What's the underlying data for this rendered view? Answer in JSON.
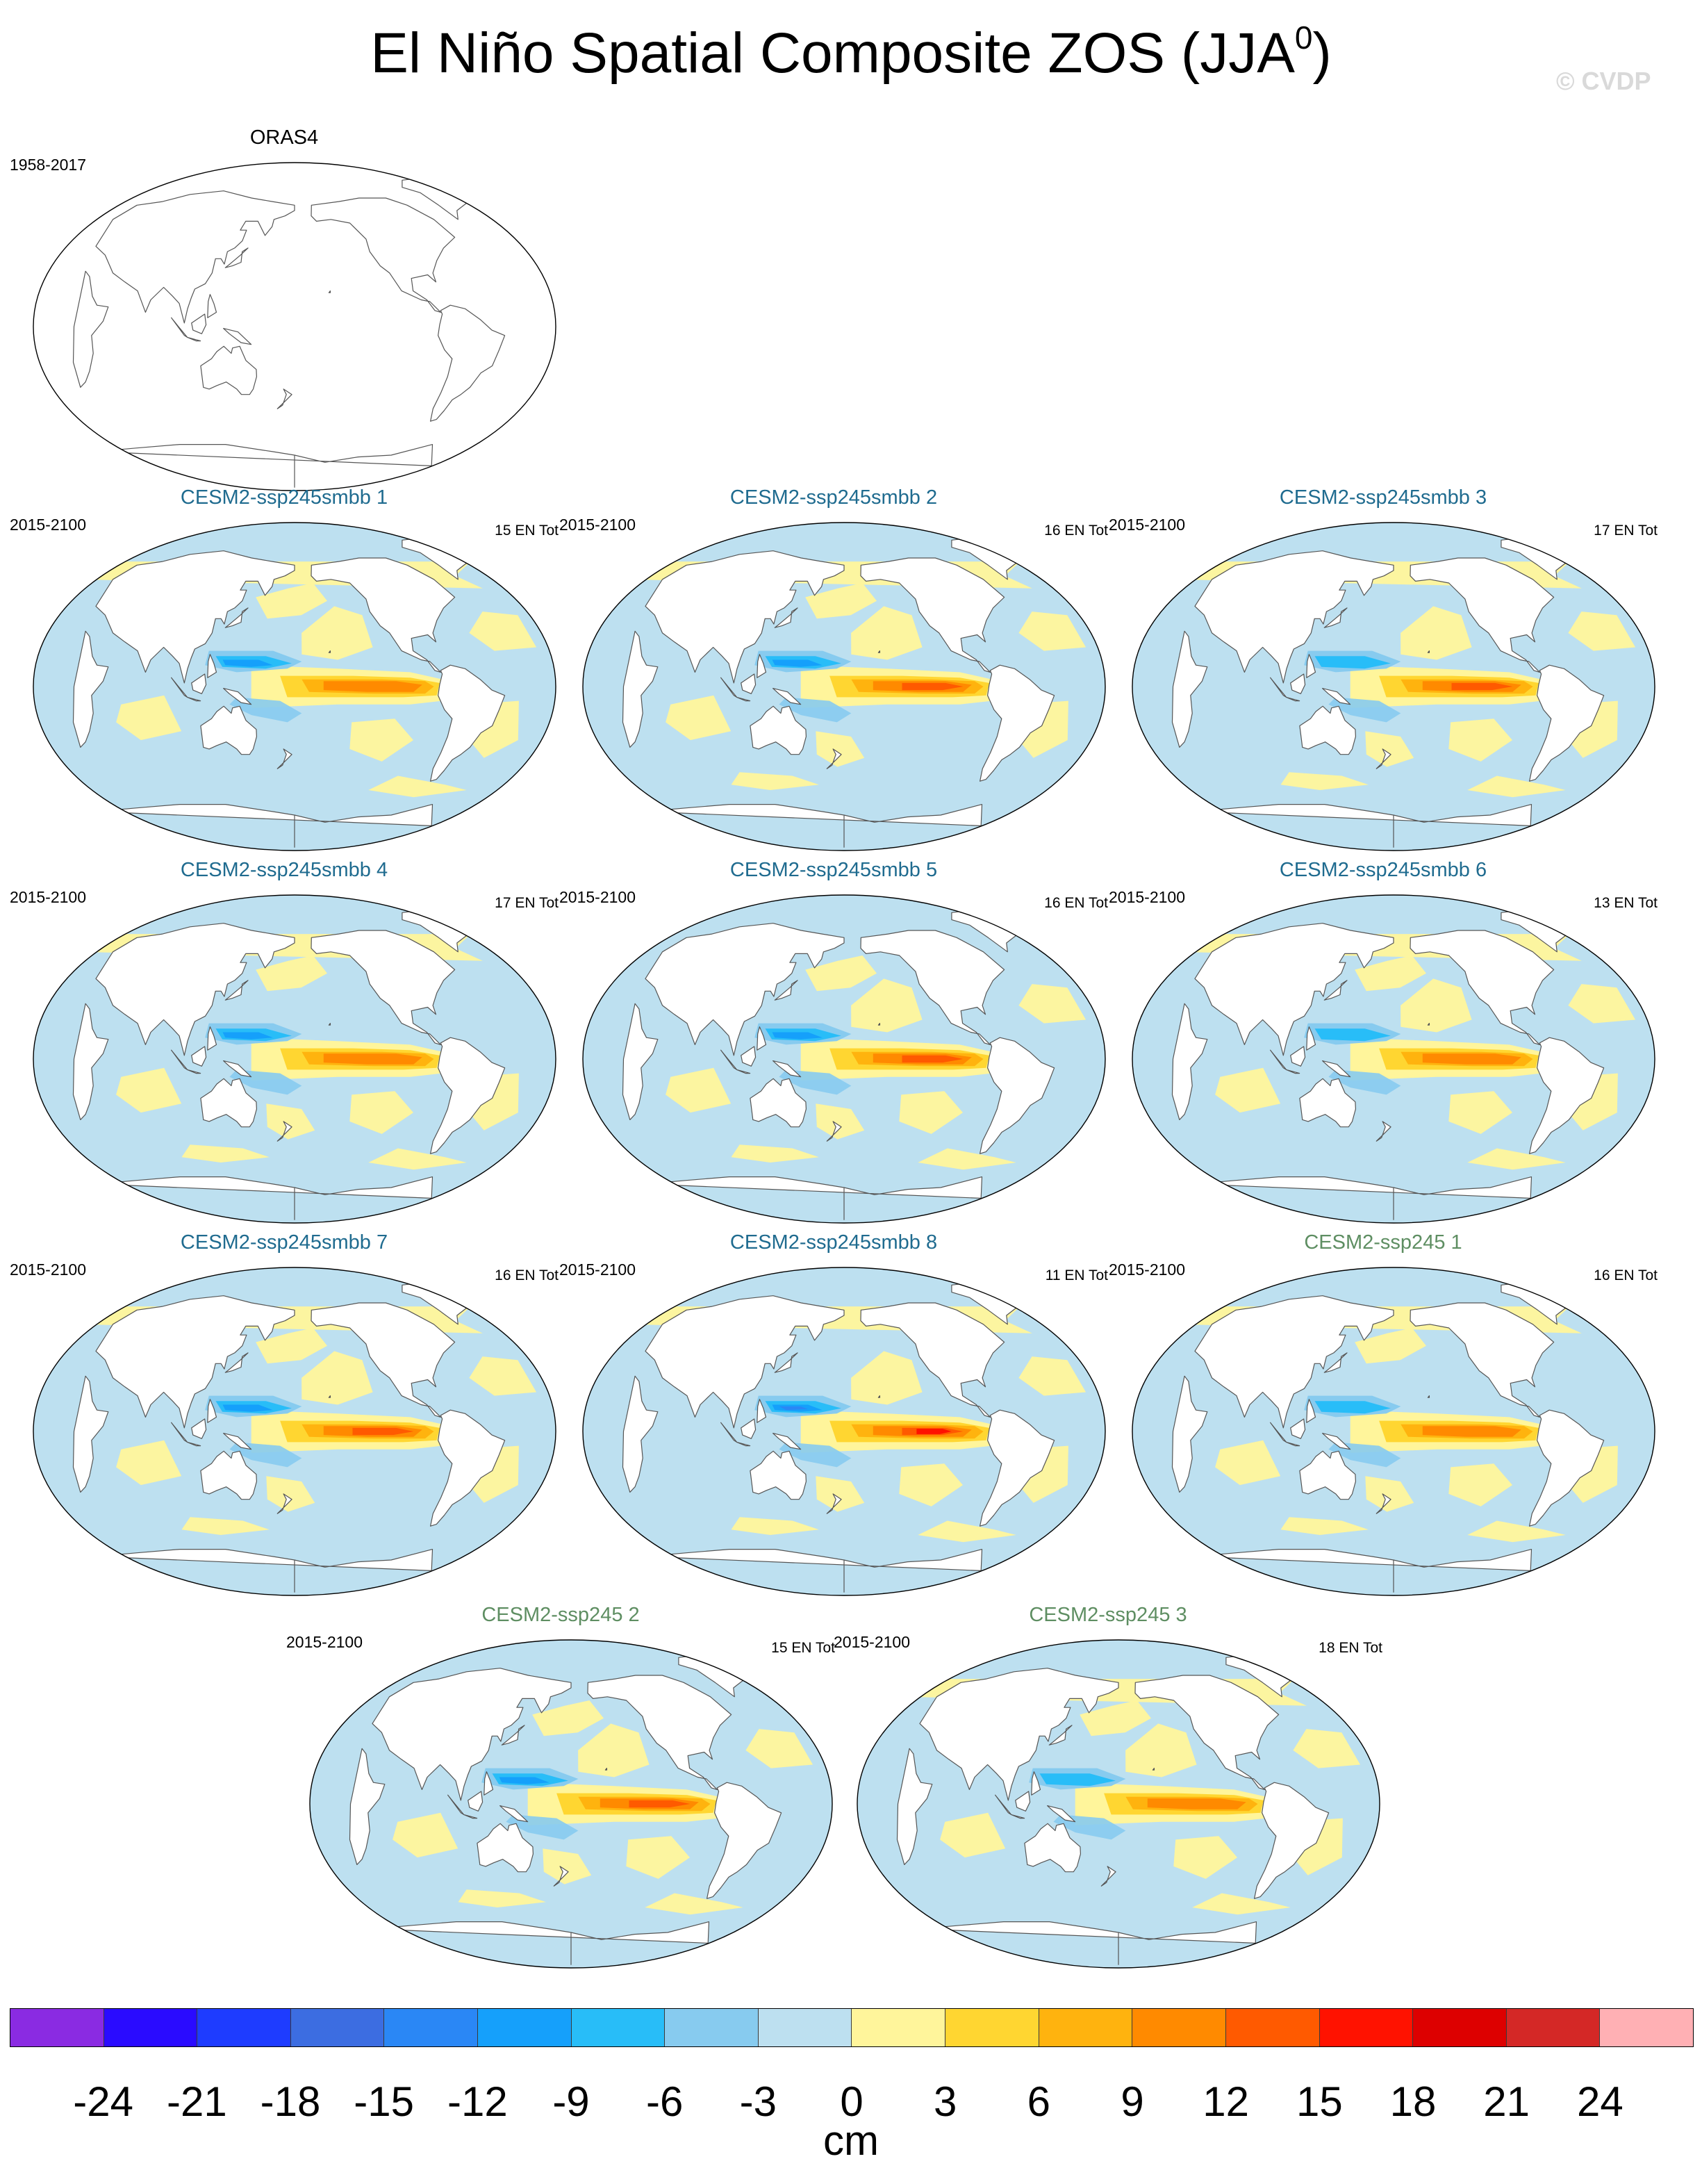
{
  "title": "El Niño Spatial Composite ZOS (JJA",
  "title_superscript": "0",
  "title_close": ")",
  "credit": "© CVDP",
  "observation_panel": {
    "title": "ORAS4",
    "years": "1958-2017",
    "count": ""
  },
  "panels": [
    {
      "title": "CESM2-ssp245smbb 1",
      "years": "2015-2100",
      "count": "15 EN Tot",
      "title_color": "#1f6b8f",
      "strength": 0.74,
      "west_cool": 0.62
    },
    {
      "title": "CESM2-ssp245smbb 2",
      "years": "2015-2100",
      "count": "16 EN Tot",
      "title_color": "#1f6b8f",
      "strength": 0.86,
      "west_cool": 0.55
    },
    {
      "title": "CESM2-ssp245smbb 3",
      "years": "2015-2100",
      "count": "17 EN Tot",
      "title_color": "#1f6b8f",
      "strength": 0.8,
      "west_cool": 0.5
    },
    {
      "title": "CESM2-ssp245smbb 4",
      "years": "2015-2100",
      "count": "17 EN Tot",
      "title_color": "#1f6b8f",
      "strength": 0.78,
      "west_cool": 0.55
    },
    {
      "title": "CESM2-ssp245smbb 5",
      "years": "2015-2100",
      "count": "16 EN Tot",
      "title_color": "#1f6b8f",
      "strength": 0.8,
      "west_cool": 0.52
    },
    {
      "title": "CESM2-ssp245smbb 6",
      "years": "2015-2100",
      "count": "13 EN Tot",
      "title_color": "#1f6b8f",
      "strength": 0.76,
      "west_cool": 0.5
    },
    {
      "title": "CESM2-ssp245smbb 7",
      "years": "2015-2100",
      "count": "16 EN Tot",
      "title_color": "#1f6b8f",
      "strength": 0.88,
      "west_cool": 0.6
    },
    {
      "title": "CESM2-ssp245smbb 8",
      "years": "2015-2100",
      "count": "11 EN Tot",
      "title_color": "#1f6b8f",
      "strength": 0.98,
      "west_cool": 0.78
    },
    {
      "title": "CESM2-ssp245 1",
      "years": "2015-2100",
      "count": "16 EN Tot",
      "title_color": "#5e8e62",
      "strength": 0.74,
      "west_cool": 0.45
    },
    {
      "title": "CESM2-ssp245 2",
      "years": "2015-2100",
      "count": "15 EN Tot",
      "title_color": "#5e8e62",
      "strength": 0.8,
      "west_cool": 0.55
    },
    {
      "title": "CESM2-ssp245 3",
      "years": "2015-2100",
      "count": "18 EN Tot",
      "title_color": "#5e8e62",
      "strength": 0.72,
      "west_cool": 0.5
    }
  ],
  "colorbar": {
    "unit": "cm",
    "ticks": [
      "-24",
      "-21",
      "-18",
      "-15",
      "-12",
      "-9",
      "-6",
      "-3",
      "0",
      "3",
      "6",
      "9",
      "12",
      "15",
      "18",
      "21",
      "24"
    ],
    "colors": [
      "#8a2be2",
      "#2a0bff",
      "#1e3cff",
      "#3c6de1",
      "#2a87f5",
      "#15a0fb",
      "#28bdf8",
      "#87cbef",
      "#bde0f0",
      "#fff59b",
      "#ffd631",
      "#ffb30e",
      "#ff8a00",
      "#ff5a00",
      "#ff1200",
      "#dd0000",
      "#d42826",
      "#ffb0b4"
    ]
  },
  "legend_categories": {
    "land": "#ffffff",
    "weak_positive": "#fff59b",
    "weak_negative": "#bde0f0"
  }
}
